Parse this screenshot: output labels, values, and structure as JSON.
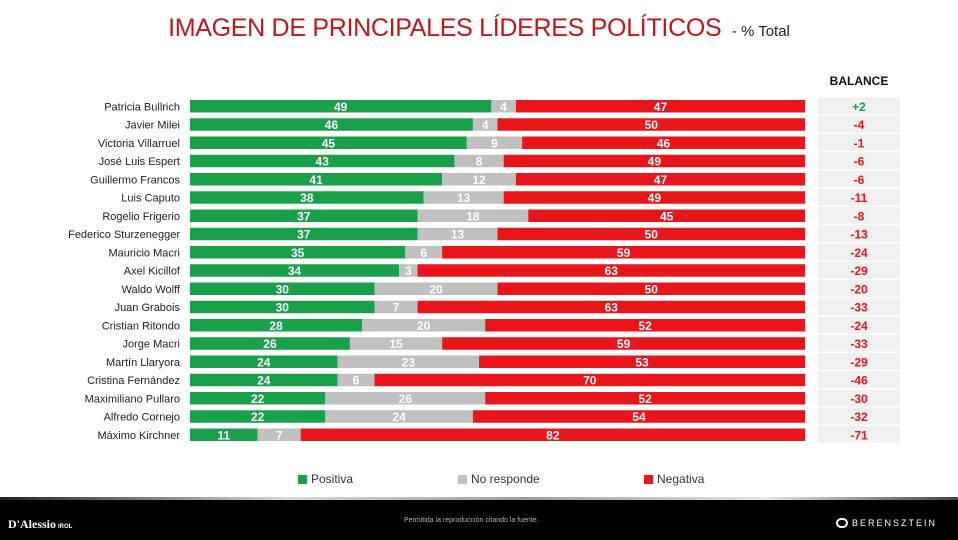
{
  "title": {
    "main": "IMAGEN DE PRINCIPALES LÍDERES POLÍTICOS",
    "sub": "- % Total"
  },
  "balance_header": "BALANCE",
  "colors": {
    "positive": "#1aa04b",
    "noresp": "#c0c0c0",
    "negative": "#e8151b",
    "balance_pos": "#1aa04b",
    "balance_neg": "#e8151b",
    "balance_bg": "#f0f0f0"
  },
  "chart_data": {
    "type": "bar",
    "orientation": "horizontal",
    "stacked": true,
    "unit": "%",
    "title": "IMAGEN DE PRINCIPALES LÍDERES POLÍTICOS - % Total",
    "categories": [
      "Patricia Bullrich",
      "Javier Milei",
      "Victoria Villarruel",
      "José Luis Espert",
      "Guillermo Francos",
      "Luis Caputo",
      "Rogelio Frigerio",
      "Federico Sturzenegger",
      "Mauricio Macri",
      "Axel Kicillof",
      "Waldo Wolff",
      "Juan Grabois",
      "Cristian Ritondo",
      "Jorge Macri",
      "Martín Llaryora",
      "Cristina Fernández",
      "Maximiliano Pullaro",
      "Alfredo Cornejo",
      "Máximo Kirchner"
    ],
    "series": [
      {
        "name": "Positiva",
        "values": [
          49,
          46,
          45,
          43,
          41,
          38,
          37,
          37,
          35,
          34,
          30,
          30,
          28,
          26,
          24,
          24,
          22,
          22,
          11
        ]
      },
      {
        "name": "No responde",
        "values": [
          4,
          4,
          9,
          8,
          12,
          13,
          18,
          13,
          6,
          3,
          20,
          7,
          20,
          15,
          23,
          6,
          26,
          24,
          7
        ]
      },
      {
        "name": "Negativa",
        "values": [
          47,
          50,
          46,
          49,
          47,
          49,
          45,
          50,
          59,
          63,
          50,
          63,
          52,
          59,
          53,
          70,
          52,
          54,
          82
        ]
      }
    ],
    "balance": [
      "+2",
      "-4",
      "-1",
      "-6",
      "-6",
      "-11",
      "-8",
      "-13",
      "-24",
      "-29",
      "-20",
      "-33",
      "-24",
      "-33",
      "-29",
      "-46",
      "-30",
      "-32",
      "-71"
    ],
    "legend": [
      "Positiva",
      "No responde",
      "Negativa"
    ]
  },
  "legend": {
    "positive": "Positiva",
    "noresp": "No responde",
    "negative": "Negativa"
  },
  "footer": {
    "note": "Permitida la reproducción citando la fuente.",
    "logo_left": "D'Alessio",
    "logo_left_sub": "IROL",
    "logo_right": "BERENSZTEIN"
  }
}
